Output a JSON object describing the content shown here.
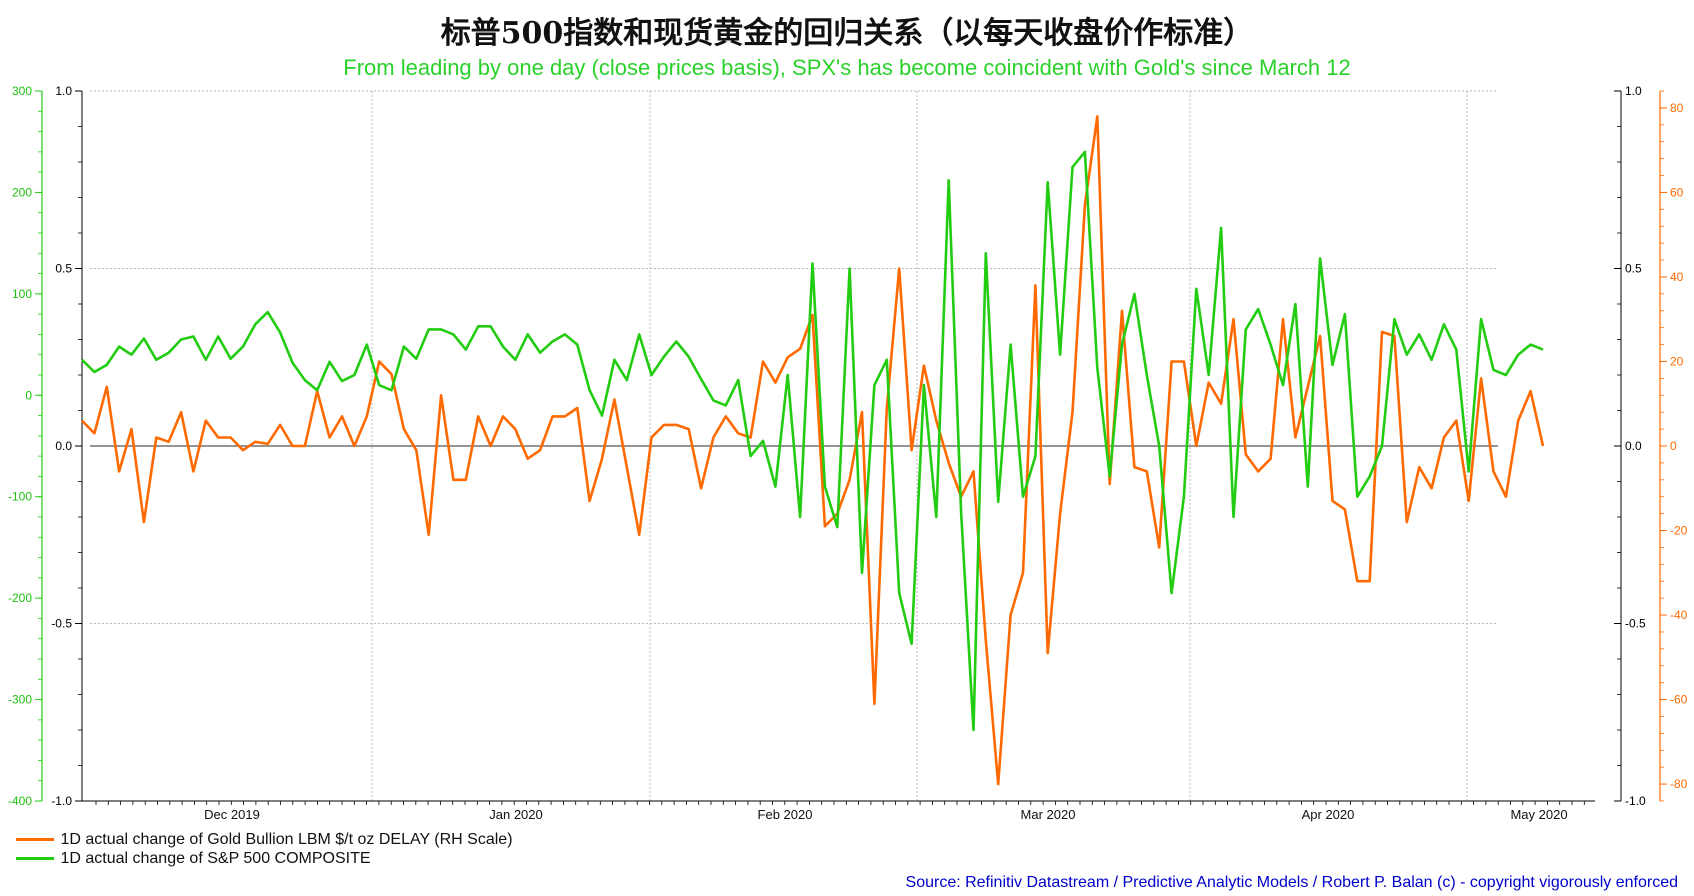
{
  "title": "标普500指数和现货黄金的回归关系（以每天收盘价作标准）",
  "subtitle": "From leading by one day (close prices basis), SPX's has become coincident with Gold's since March 12",
  "source": "Source: Refinitiv Datastream / Predictive Analytic Models / Robert P. Balan  (c) - copyright vigorously enforced",
  "colors": {
    "gold": "#ff6a00",
    "spx": "#22cc11",
    "grid": "#b8b8b8",
    "zero": "#555555"
  },
  "chart_data": {
    "type": "line",
    "x_labels": [
      "Dec 2019",
      "Jan 2020",
      "Feb 2020",
      "Mar 2020",
      "Apr 2020",
      "May 2020"
    ],
    "axes": {
      "left_outer": {
        "ticks": [
          "300",
          "200",
          "100",
          "0",
          "-100",
          "-200",
          "-300",
          "-400"
        ],
        "range": [
          -400,
          300
        ]
      },
      "left_inner": {
        "ticks": [
          "1.0",
          "0.5",
          "0.0",
          "-0.5",
          "-1.0"
        ],
        "range": [
          -1,
          1
        ]
      },
      "right_inner": {
        "ticks": [
          "1.0",
          "0.5",
          "0.0",
          "-0.5",
          "-1.0"
        ],
        "range": [
          -1,
          1
        ]
      },
      "right_outer": {
        "ticks": [
          "80",
          "60",
          "40",
          "20",
          "0",
          "-20",
          "-40",
          "-60",
          "-80"
        ],
        "range": [
          -84,
          84
        ]
      }
    },
    "grid": true,
    "legend_position": "bottom-left",
    "series": [
      {
        "name": "1D actual change of Gold Bullion LBM $/t oz DELAY (RH Scale)",
        "axis": "right_outer",
        "values": [
          6,
          3,
          14,
          -6,
          4,
          -18,
          2,
          1,
          8,
          -6,
          6,
          2,
          2,
          -1,
          1,
          0.5,
          5,
          0,
          0,
          13,
          2,
          7,
          0,
          7,
          20,
          17,
          4,
          -1,
          -21,
          12,
          -8,
          -8,
          7,
          0,
          7,
          4,
          -3,
          -1,
          7,
          7,
          9,
          -13,
          -3,
          11,
          -5,
          -21,
          2,
          5,
          5,
          4,
          -10,
          2,
          7,
          3,
          2,
          20,
          15,
          21,
          23,
          31,
          -19,
          -16,
          -8,
          8,
          -61,
          9,
          42,
          -1,
          19,
          6,
          -4,
          -12,
          -6,
          -46,
          -80,
          -40,
          -30,
          38,
          -49,
          -16,
          8,
          57,
          78,
          -9,
          32,
          -5,
          -6,
          -24,
          20,
          20,
          0,
          15,
          10,
          30,
          -2,
          -6,
          -3,
          30,
          2,
          14,
          26,
          -13,
          -15,
          -32,
          -32,
          27,
          26,
          -18,
          -5,
          -10,
          2,
          6,
          -13,
          16,
          -6,
          -12,
          6,
          13,
          0
        ]
      },
      {
        "name": "1D actual change of S&P 500 COMPOSITE",
        "axis": "left_outer",
        "values": [
          35,
          23,
          30,
          48,
          40,
          56,
          35,
          42,
          55,
          58,
          35,
          58,
          36,
          48,
          70,
          82,
          62,
          32,
          15,
          5,
          33,
          14,
          20,
          50,
          10,
          5,
          48,
          36,
          65,
          65,
          60,
          45,
          68,
          68,
          48,
          35,
          60,
          42,
          53,
          60,
          50,
          5,
          -20,
          35,
          15,
          60,
          20,
          38,
          53,
          38,
          16,
          -5,
          -10,
          15,
          -60,
          -45,
          -90,
          20,
          -120,
          130,
          -90,
          -130,
          125,
          -175,
          10,
          35,
          -195,
          -245,
          10,
          -120,
          212,
          -115,
          -330,
          140,
          -105,
          50,
          -100,
          -60,
          210,
          40,
          225,
          240,
          27,
          -80,
          50,
          100,
          20,
          -50,
          -195,
          -100,
          105,
          20,
          165,
          -120,
          65,
          85,
          50,
          10,
          90,
          -90,
          135,
          30,
          80,
          -100,
          -80,
          -50,
          75,
          40,
          60,
          35,
          70,
          45,
          -75,
          75,
          25,
          20,
          40,
          50,
          45
        ]
      }
    ]
  }
}
